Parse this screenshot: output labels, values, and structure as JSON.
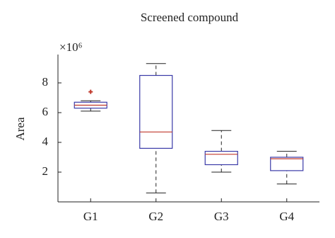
{
  "chart_data": {
    "type": "box",
    "title": "Screened compound",
    "y_label": "Area",
    "scale_label": "×10⁶",
    "categories": [
      "G1",
      "G2",
      "G3",
      "G4"
    ],
    "boxes": [
      {
        "min": 6.1,
        "q1": 6.3,
        "median": 6.5,
        "q3": 6.7,
        "max": 6.8,
        "outliers": [
          7.4
        ]
      },
      {
        "min": 0.6,
        "q1": 3.6,
        "median": 4.7,
        "q3": 8.5,
        "max": 9.3,
        "outliers": []
      },
      {
        "min": 2.0,
        "q1": 2.5,
        "median": 3.2,
        "q3": 3.4,
        "max": 4.8,
        "outliers": []
      },
      {
        "min": 1.2,
        "q1": 2.1,
        "median": 2.9,
        "q3": 3.0,
        "max": 3.4,
        "outliers": []
      }
    ],
    "box_color": "#3a3aa8",
    "median_color": "#c0392b",
    "outlier_color": "#c0392b",
    "ylim": [
      0,
      10
    ],
    "yticks": [
      2,
      4,
      6,
      8
    ]
  }
}
